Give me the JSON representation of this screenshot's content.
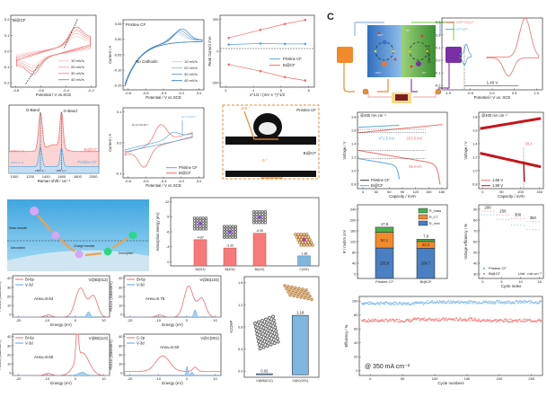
{
  "panel_labels": {
    "c": "C"
  },
  "cv_bi": {
    "tag": "Bi@CF",
    "xlabel": "Potential / V vs.SCE",
    "xticks": [
      "-0.8",
      "-0.6",
      "-0.4",
      "-0.2"
    ],
    "yticks": [
      "0.2",
      "0.1",
      "0.0",
      "-0.1",
      "-0.2"
    ],
    "legend": [
      "10 mV/s",
      "20 mV/s",
      "30 mV/s",
      "40 mV/s"
    ]
  },
  "cv_pristine": {
    "tag": "Pristine CF",
    "ylabel": "Current / A",
    "xlabel": "Potential / V vs.SCE",
    "annotation": "No Cathodic",
    "xticks": [
      "-0.8",
      "-0.6",
      "-0.4",
      "-0.2",
      "0.0"
    ],
    "yticks": [
      "0.05",
      "0.00",
      "-0.05",
      "-0.10",
      "-0.15"
    ],
    "legend": [
      "10 mV/s",
      "20 mV/s",
      "30 mV/s",
      "40 mV/s"
    ]
  },
  "peak": {
    "ylabel": "Peak Current /mA",
    "xlabel": "υ^1/2 / (mV s⁻¹)^1/2",
    "xticks": [
      "3",
      "4",
      "5",
      "6"
    ],
    "yticks": [
      "200",
      "0",
      "-200"
    ],
    "legend": [
      "Pristine CF",
      "Bi@CF"
    ]
  },
  "raman": {
    "xlabel": "Raman shift / cm⁻¹",
    "xticks": [
      "1000",
      "1200",
      "1400",
      "1600",
      "1800",
      "2000"
    ],
    "d_band": "D-Band",
    "g_band": "G-Band",
    "ratio_bi": "ID/IG=1.14",
    "ratio_pristine": "ID/IG=1.11",
    "peak_d": "1350 cm⁻¹",
    "peak_g": "1585 cm⁻¹",
    "series": [
      "Bi@CF",
      "Pristine CF"
    ]
  },
  "cv_compare": {
    "ylabel": "Current / A",
    "xlabel": "Potential / V vs.SCE",
    "xticks": [
      "-0.8",
      "-0.6",
      "-0.4",
      "-0.2",
      "0.0"
    ],
    "yticks": [
      "0.1",
      "0.0",
      "-0.1"
    ],
    "s1": "S₁=2.72×10⁻²",
    "s2": "S₂=7.4×10⁻³",
    "legend": [
      "Pristine CF",
      "Bi@CF"
    ]
  },
  "contact": {
    "angle_pristine": "115 °",
    "angle_bi": "0 °",
    "label_pristine": "Pristine CF",
    "label_bi": "Bi@CF"
  },
  "schematic": {
    "mass": "Mass transfer",
    "adsorption": "Adsorption",
    "charge": "Charge transfer",
    "desorption": "Desorption"
  },
  "adsorption": {
    "ylabel": "Adsorption energy (eV)",
    "yticks": [
      "-12",
      "-9",
      "-6",
      "-3",
      "0"
    ],
    "value_labels": [
      "-4.87",
      "-3.33",
      "-6.06",
      "-1.86"
    ]
  },
  "pdos": [
    {
      "tag": "V@Bi(012)",
      "l1": "Bi-6p",
      "l2": "V-3d",
      "area": "Area=9.64"
    },
    {
      "tag": "V@Bi(104)",
      "l1": "Bi-6p",
      "l2": "V-3d",
      "area": "Area=9.75"
    },
    {
      "tag": "V@Bi(110)",
      "l1": "Bi-6p",
      "l2": "V-3d",
      "area": "Area=9.60"
    },
    {
      "tag": "V@C(001)",
      "l1": "C-2p",
      "l2": "V-3d",
      "area": "Area=5.92"
    }
  ],
  "pdos_axes": {
    "xlabel": "Energy (eV)",
    "ylabel": "PDOS (states/eV)",
    "xticks": [
      "-20",
      "-10",
      "0",
      "10"
    ],
    "yticks": [
      "40",
      "30",
      "20",
      "10",
      "0"
    ]
  },
  "cohp": {
    "ylabel": "-ICOHP",
    "yticks": [
      "1.6",
      "1.2",
      "0.8",
      "0.4",
      "0.0"
    ],
    "value_labels": [
      "0.02",
      "1.18"
    ]
  },
  "flowcell": {
    "ion_left_top": "VO²⁺",
    "ion_left_bottom": "VO₂⁺",
    "ion_right_top": "V³⁺",
    "ion_right_bottom": "V²⁺"
  },
  "cv_right": {
    "ylabel": "Current / A",
    "xlabel": "Potential / V vs. SCE",
    "xticks": [
      "-1.0",
      "-0.5",
      "0.0",
      "0.5",
      "1.0"
    ],
    "yticks": [
      "0.3",
      "0.2",
      "0.1",
      "0.0",
      "-0.1",
      "-0.2"
    ],
    "legend": [
      "VO²⁺/VO₂⁺",
      "V²⁺/V³⁺"
    ],
    "annotation": "1.40 V"
  },
  "voltage1": {
    "tag": "@400 mA cm⁻²",
    "ylabel": "Voltage / V",
    "xlabel": "Capacity / mAh",
    "xticks": [
      "0",
      "30",
      "60",
      "90",
      "120",
      "150",
      "180"
    ],
    "yticks": [
      "1.8",
      "1.6",
      "1.4",
      "1.2",
      "1.0",
      "0.8"
    ],
    "a1": "471.5 mV",
    "a2": "253.8 mV",
    "a3": "85 mAh",
    "legend": [
      "Pristine CF",
      "Bi@CF"
    ]
  },
  "voltage2": {
    "tag": "@400 mA cm⁻²",
    "ylabel": "Voltage / V",
    "xlabel": "Capacity / mAh",
    "xticks": [
      "0",
      "50",
      "100",
      "150"
    ],
    "yticks": [
      "1.8",
      "1.6",
      "1.4",
      "1.2",
      "1.0",
      "0.8"
    ],
    "annotation": "38.4",
    "legend": [
      "1.65 V",
      "1.80 V"
    ]
  },
  "resistance": {
    "ylabel": "R / mohm cm²",
    "yticks": [
      "240",
      "200",
      "160",
      "120",
      "80",
      "40",
      "0"
    ],
    "legend": [
      "R_mass",
      "R_CT",
      "R_ohm"
    ],
    "totals": [
      "17.8",
      "7.8"
    ]
  },
  "ve": {
    "ylabel": "Voltage efficiency / %",
    "xlabel": "Cycle index",
    "xticks": [
      "0",
      "5",
      "10",
      "15"
    ],
    "yticks": [
      "90",
      "80",
      "70",
      "60",
      "50",
      "40",
      "30"
    ],
    "rates": [
      "200",
      "250",
      "300",
      "350"
    ],
    "legend": [
      "Pristine CF",
      "Bi@CF"
    ],
    "unit": "Unit : mA cm⁻²"
  },
  "efficiency": {
    "ylabel": "Efficiency / %",
    "xlabel": "Cycle numbers",
    "xticks": [
      "0",
      "50",
      "100",
      "150",
      "200",
      "250"
    ],
    "yticks": [
      "100",
      "80",
      "60",
      "40",
      "20",
      "0"
    ],
    "annotation": "@ 350 mA cm⁻²"
  },
  "colors": {
    "red": "#f26b6b",
    "blue": "#5aa7dc",
    "orange": "#f08a2c",
    "green": "#4caf50",
    "darkblue": "#3f7fc0",
    "darkred": "#c4161c"
  },
  "chart_data": [
    {
      "type": "bar",
      "title": "Adsorption energy",
      "categories": [
        "Bi(012)",
        "Bi(104)",
        "Bi(110)",
        "C(001)"
      ],
      "values": [
        -4.87,
        -3.33,
        -6.06,
        -1.86
      ],
      "ylabel": "Adsorption energy (eV)",
      "ylim": [
        0,
        -12
      ]
    },
    {
      "type": "bar",
      "title": "-ICOHP",
      "categories": [
        "V@Bi(012)",
        "V@C(001)"
      ],
      "values": [
        0.02,
        1.18
      ],
      "ylabel": "-ICOHP",
      "ylim": [
        0,
        1.9
      ]
    },
    {
      "type": "bar",
      "title": "Resistance",
      "categories": [
        "Pristine CF",
        "Bi@CF"
      ],
      "series": [
        {
          "name": "R_ohm",
          "values": [
            105.6,
            104.7
          ]
        },
        {
          "name": "R_CT",
          "values": [
            54.1,
            23.3
          ]
        },
        {
          "name": "R_mass",
          "values": [
            17.8,
            7.8
          ]
        }
      ],
      "ylabel": "R / mohm cm²",
      "ylim": [
        0,
        250
      ]
    },
    {
      "type": "line",
      "title": "Peak current",
      "x": [
        3.16,
        4.47,
        5.48,
        6.32
      ],
      "series": [
        {
          "name": "Bi@CF anodic",
          "values": [
            80,
            140,
            185,
            215
          ]
        },
        {
          "name": "Bi@CF cathodic",
          "values": [
            -120,
            -170,
            -215,
            -240
          ]
        },
        {
          "name": "Pristine CF",
          "values": [
            30,
            38,
            35,
            35
          ]
        }
      ],
      "ylim": [
        -280,
        250
      ]
    },
    {
      "type": "scatter",
      "title": "Voltage efficiency",
      "categories": [
        "200",
        "250",
        "300",
        "350"
      ],
      "series": [
        {
          "name": "Pristine CF",
          "values": [
            83,
            79,
            74,
            70
          ]
        },
        {
          "name": "Bi@CF",
          "values": [
            86,
            83,
            80,
            77
          ]
        }
      ],
      "ylim": [
        30,
        92
      ]
    },
    {
      "type": "scatter",
      "title": "Cycling efficiency",
      "series": [
        {
          "name": "CE",
          "values": [
            96
          ]
        },
        {
          "name": "EE",
          "values": [
            74
          ]
        }
      ],
      "xlim": [
        0,
        260
      ],
      "ylim": [
        0,
        105
      ]
    }
  ]
}
